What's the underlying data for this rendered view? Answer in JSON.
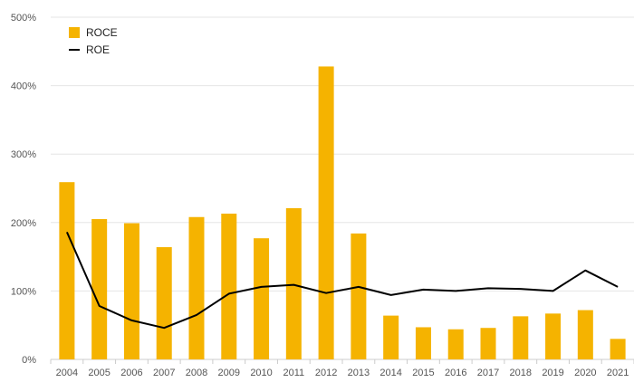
{
  "chart_data": {
    "type": "bar",
    "categories": [
      "2004",
      "2005",
      "2006",
      "2007",
      "2008",
      "2009",
      "2010",
      "2011",
      "2012",
      "2013",
      "2014",
      "2015",
      "2016",
      "2017",
      "2018",
      "2019",
      "2020",
      "2021"
    ],
    "series": [
      {
        "name": "ROCE",
        "type": "bar",
        "color": "#F5B300",
        "values": [
          259,
          205,
          199,
          164,
          208,
          213,
          177,
          221,
          428,
          184,
          64,
          47,
          44,
          46,
          63,
          67,
          72,
          30
        ]
      },
      {
        "name": "ROE",
        "type": "line",
        "color": "#000000",
        "values": [
          186,
          78,
          57,
          46,
          65,
          96,
          106,
          109,
          97,
          106,
          94,
          102,
          100,
          104,
          103,
          100,
          130,
          106
        ]
      }
    ],
    "ylim": [
      0,
      500
    ],
    "y_ticks": [
      "0%",
      "100%",
      "200%",
      "300%",
      "400%",
      "500%"
    ],
    "y_tick_values": [
      0,
      100,
      200,
      300,
      400,
      500
    ],
    "grid": true,
    "legend_position": "top-left",
    "title": "",
    "xlabel": "",
    "ylabel": ""
  }
}
